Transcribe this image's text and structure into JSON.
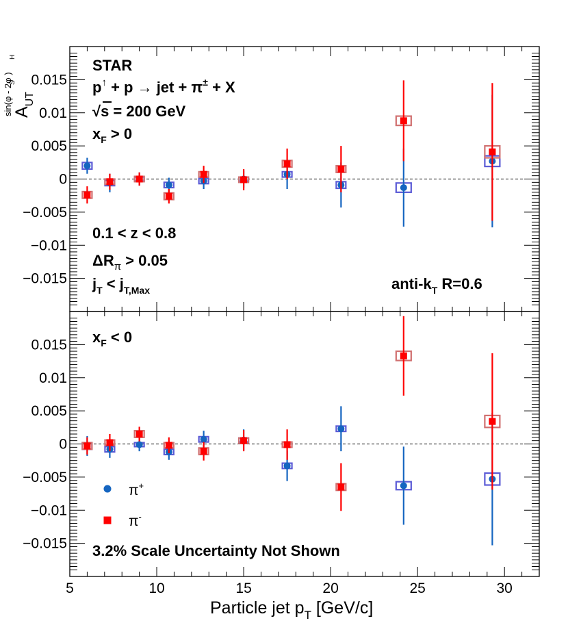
{
  "chart_data": {
    "type": "scatter",
    "shared_x": {
      "label": "Particle jet p",
      "label_sub": "T",
      "label_unit": " [GeV/c]",
      "range": [
        5,
        32
      ],
      "ticks": [
        5,
        10,
        15,
        20,
        25,
        30
      ]
    },
    "y_axis": {
      "label_main": "A",
      "label_sub": "UT",
      "label_sup": "sin(φ  - 2φ )",
      "label_sup_s": "S",
      "label_sup_h": "H",
      "range": [
        -0.02,
        0.02
      ],
      "ticks": [
        -0.015,
        -0.01,
        -0.005,
        0,
        0.005,
        0.01,
        0.015
      ],
      "tick_labels": [
        "−0.015",
        "−0.01",
        "−0.005",
        "0",
        "0.005",
        "0.01",
        "0.015"
      ]
    },
    "annotations": {
      "experiment": "STAR",
      "reaction_p": "p",
      "reaction_arrow": "↑",
      "reaction_rest": " + p  → jet +  π",
      "reaction_pm": "±",
      "reaction_end": " + X",
      "energy_sqrt": "√",
      "energy_rest": "s = 200 GeV",
      "xf_top_main": "x",
      "xf_top_sub": "F",
      "xf_top_rest": " > 0",
      "z_cut": "0.1 < z < 0.8",
      "dr_main": "ΔR",
      "dr_sub": "π",
      "dr_rest": " > 0.05",
      "jt_main1": "j",
      "jt_sub1": "T",
      "jt_mid": " < j",
      "jt_sub2": "T,Max",
      "jet_algo_main": "anti-k",
      "jet_algo_sub": "T",
      "jet_algo_rest": " R=0.6",
      "xf_bottom_main": "x",
      "xf_bottom_sub": "F",
      "xf_bottom_rest": " < 0",
      "scale_note": "3.2% Scale Uncertainty Not Shown"
    },
    "legend": [
      {
        "label": "π",
        "sup": "+",
        "color": "#1565c0",
        "marker": "circle"
      },
      {
        "label": "π",
        "sup": "-",
        "color": "#ff0000",
        "marker": "square"
      }
    ],
    "panels": [
      {
        "name": "xF > 0",
        "series": [
          {
            "name": "π+",
            "color": "#1565c0",
            "box_color": "#5b5bd6",
            "marker": "circle",
            "points": [
              {
                "x": 6.0,
                "y": 0.002,
                "err": 0.0012,
                "syst": 0.0005
              },
              {
                "x": 7.3,
                "y": -0.0006,
                "err": 0.0014,
                "syst": 0.0004
              },
              {
                "x": 9.0,
                "y": 0.0,
                "err": 0.001,
                "syst": 0.0003
              },
              {
                "x": 10.7,
                "y": -0.0009,
                "err": 0.0011,
                "syst": 0.0004
              },
              {
                "x": 12.7,
                "y": -0.0003,
                "err": 0.0012,
                "syst": 0.0004
              },
              {
                "x": 15.0,
                "y": 0.0,
                "err": 0.0013,
                "syst": 0.0003
              },
              {
                "x": 17.5,
                "y": 0.0007,
                "err": 0.0022,
                "syst": 0.0004
              },
              {
                "x": 20.6,
                "y": -0.0009,
                "err": 0.0034,
                "syst": 0.0005
              },
              {
                "x": 24.2,
                "y": -0.0013,
                "err": 0.0059,
                "syst": 0.0007
              },
              {
                "x": 29.3,
                "y": 0.0027,
                "err": 0.01,
                "syst": 0.0008
              }
            ]
          },
          {
            "name": "π-",
            "color": "#ff0000",
            "box_color": "#d07070",
            "marker": "square",
            "points": [
              {
                "x": 6.0,
                "y": -0.0024,
                "err": 0.0013,
                "syst": 0.0005
              },
              {
                "x": 7.3,
                "y": -0.0004,
                "err": 0.0012,
                "syst": 0.0004
              },
              {
                "x": 9.0,
                "y": 0.0,
                "err": 0.001,
                "syst": 0.0004
              },
              {
                "x": 10.7,
                "y": -0.0026,
                "err": 0.0011,
                "syst": 0.0005
              },
              {
                "x": 12.7,
                "y": 0.0007,
                "err": 0.0013,
                "syst": 0.0004
              },
              {
                "x": 15.0,
                "y": -0.0001,
                "err": 0.0016,
                "syst": 0.0004
              },
              {
                "x": 17.5,
                "y": 0.0023,
                "err": 0.0023,
                "syst": 0.0005
              },
              {
                "x": 20.6,
                "y": 0.0015,
                "err": 0.0035,
                "syst": 0.0005
              },
              {
                "x": 24.2,
                "y": 0.0088,
                "err": 0.0061,
                "syst": 0.0007
              },
              {
                "x": 29.3,
                "y": 0.0041,
                "err": 0.0104,
                "syst": 0.0009
              }
            ]
          }
        ]
      },
      {
        "name": "xF < 0",
        "series": [
          {
            "name": "π+",
            "color": "#1565c0",
            "box_color": "#5b5bd6",
            "marker": "circle",
            "points": [
              {
                "x": 6.0,
                "y": -0.0003,
                "err": 0.0015,
                "syst": 0.0005
              },
              {
                "x": 7.3,
                "y": -0.0008,
                "err": 0.0013,
                "syst": 0.0004
              },
              {
                "x": 9.0,
                "y": -0.0001,
                "err": 0.001,
                "syst": 0.0003
              },
              {
                "x": 10.7,
                "y": -0.0012,
                "err": 0.0012,
                "syst": 0.0004
              },
              {
                "x": 12.7,
                "y": 0.0007,
                "err": 0.0013,
                "syst": 0.0004
              },
              {
                "x": 15.0,
                "y": 0.0006,
                "err": 0.0016,
                "syst": 0.0003
              },
              {
                "x": 17.5,
                "y": -0.0033,
                "err": 0.0023,
                "syst": 0.0004
              },
              {
                "x": 20.6,
                "y": 0.0023,
                "err": 0.0034,
                "syst": 0.0004
              },
              {
                "x": 24.2,
                "y": -0.0063,
                "err": 0.0059,
                "syst": 0.0006
              },
              {
                "x": 29.3,
                "y": -0.0053,
                "err": 0.01,
                "syst": 0.0009
              }
            ]
          },
          {
            "name": "π-",
            "color": "#ff0000",
            "box_color": "#d07070",
            "marker": "square",
            "points": [
              {
                "x": 6.0,
                "y": -0.0003,
                "err": 0.0013,
                "syst": 0.0005
              },
              {
                "x": 7.3,
                "y": 0.0002,
                "err": 0.0013,
                "syst": 0.0004
              },
              {
                "x": 9.0,
                "y": 0.0015,
                "err": 0.0011,
                "syst": 0.0005
              },
              {
                "x": 10.7,
                "y": -0.0002,
                "err": 0.0012,
                "syst": 0.0004
              },
              {
                "x": 12.7,
                "y": -0.0011,
                "err": 0.0014,
                "syst": 0.0005
              },
              {
                "x": 15.0,
                "y": 0.0005,
                "err": 0.0016,
                "syst": 0.0004
              },
              {
                "x": 17.5,
                "y": -0.0001,
                "err": 0.0023,
                "syst": 0.0004
              },
              {
                "x": 20.6,
                "y": -0.0065,
                "err": 0.0036,
                "syst": 0.0005
              },
              {
                "x": 24.2,
                "y": 0.0133,
                "err": 0.006,
                "syst": 0.0007
              },
              {
                "x": 29.3,
                "y": 0.0034,
                "err": 0.0103,
                "syst": 0.0009
              }
            ]
          }
        ]
      }
    ]
  }
}
